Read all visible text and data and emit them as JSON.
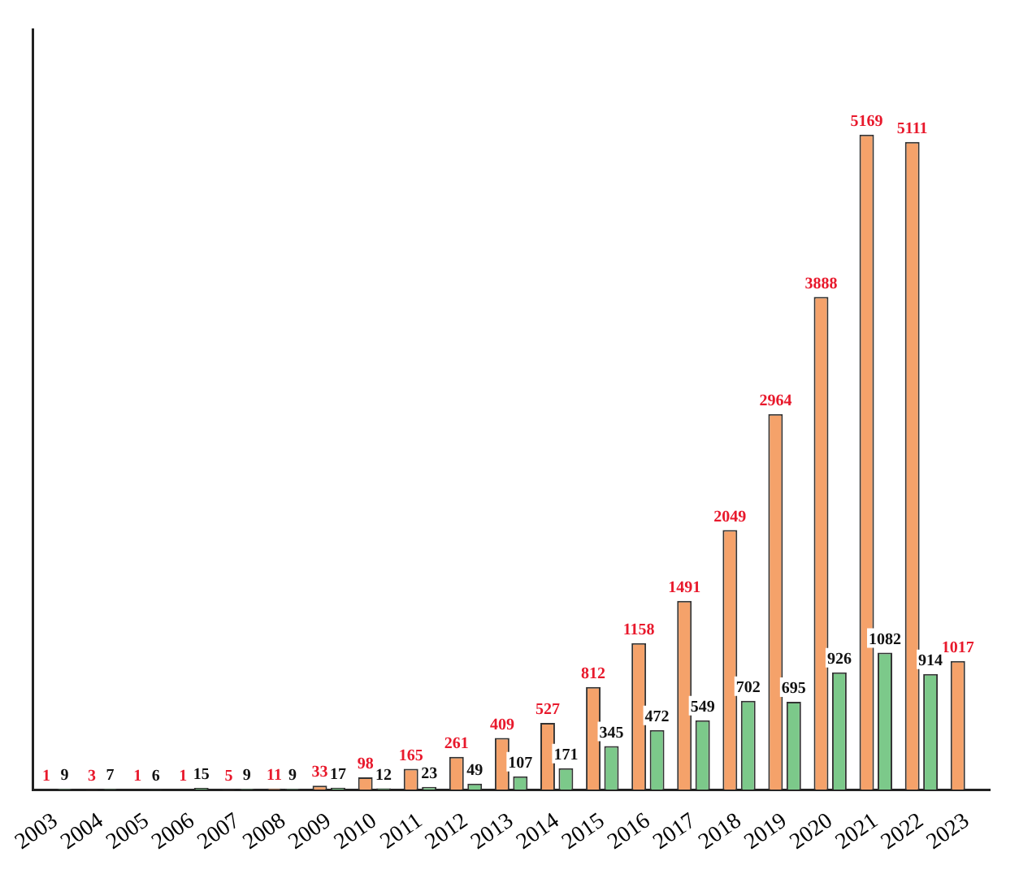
{
  "chart_data": {
    "type": "bar",
    "categories": [
      "2003",
      "2004",
      "2005",
      "2006",
      "2007",
      "2008",
      "2009",
      "2010",
      "2011",
      "2012",
      "2013",
      "2014",
      "2015",
      "2016",
      "2017",
      "2018",
      "2019",
      "2020",
      "2021",
      "2022",
      "2023"
    ],
    "series": [
      {
        "color": "#f5a26a",
        "values": [
          1,
          3,
          1,
          1,
          5,
          11,
          33,
          98,
          165,
          261,
          409,
          527,
          812,
          1158,
          1491,
          2049,
          2964,
          3888,
          5169,
          5111,
          1017
        ]
      },
      {
        "color": "#7cc98a",
        "values": [
          9,
          7,
          6,
          15,
          9,
          9,
          17,
          12,
          23,
          49,
          107,
          171,
          345,
          472,
          549,
          702,
          695,
          926,
          1082,
          914,
          null
        ]
      }
    ],
    "data_labels": true,
    "grid": false,
    "tick_labels": "x"
  }
}
